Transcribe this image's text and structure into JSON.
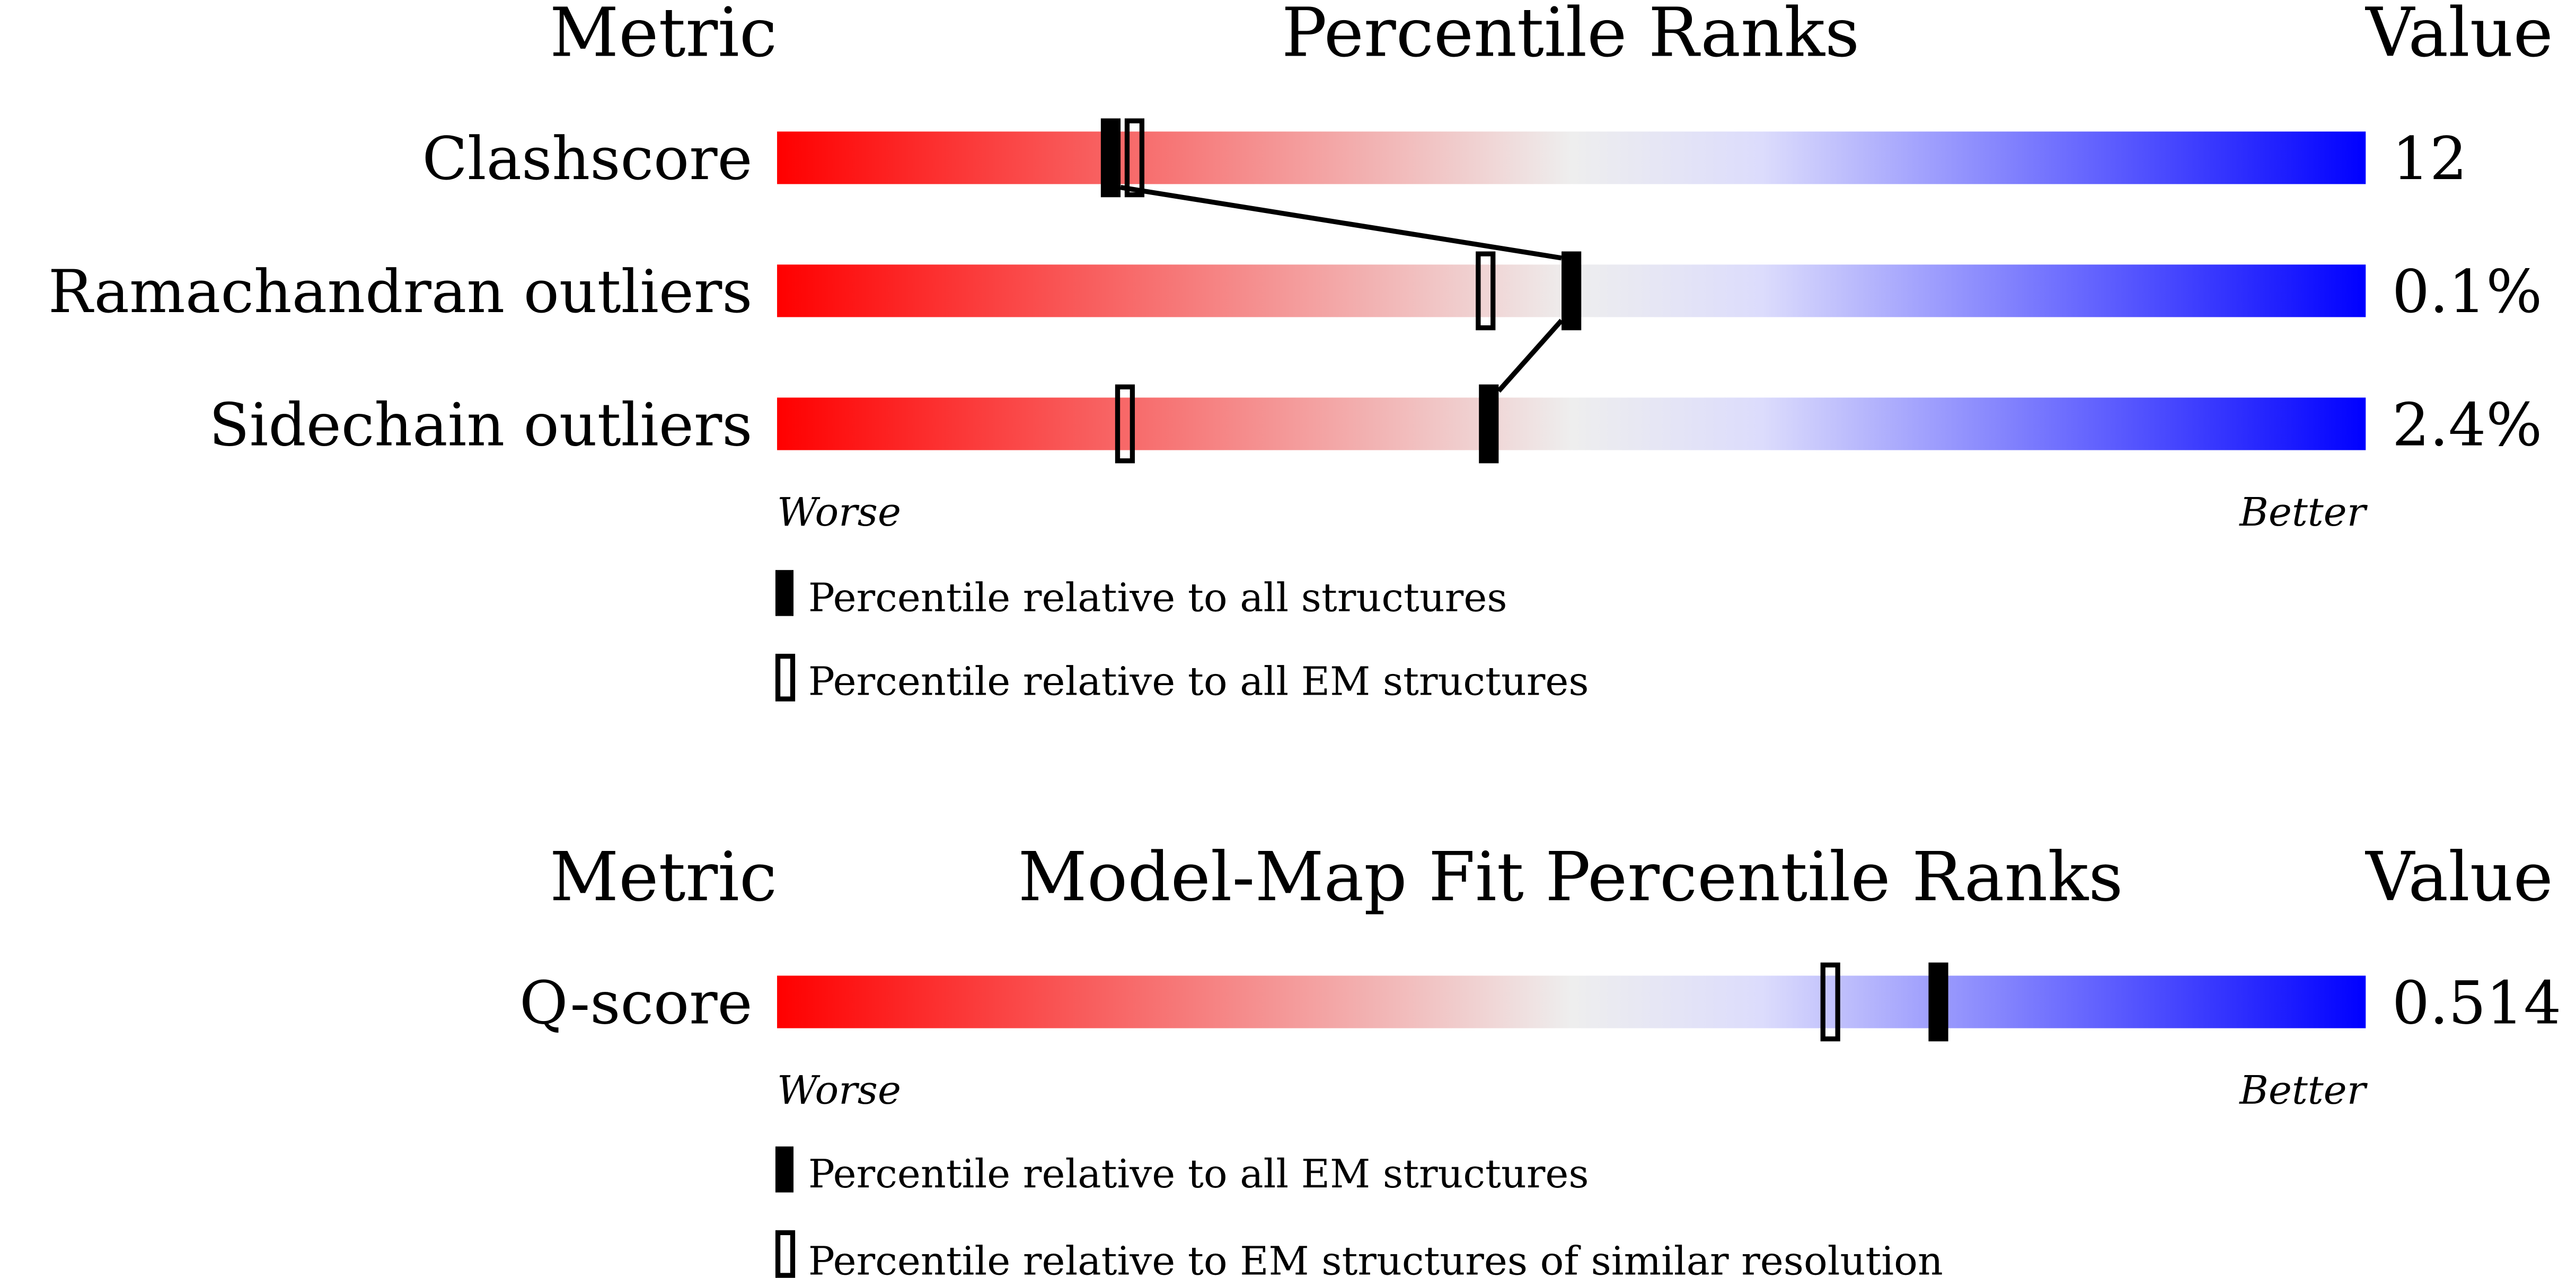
{
  "chart_data": [
    {
      "type": "bar",
      "title": "Percentile Ranks",
      "header_metric": "Metric",
      "header_value": "Value",
      "xlim": [
        0,
        100
      ],
      "low_label": "Worse",
      "high_label": "Better",
      "colors": {
        "worse": "#ff0000",
        "middle": "#eeeeee",
        "better": "#0000ff"
      },
      "rows": [
        {
          "metric": "Clashscore",
          "value": "12",
          "percentile_all": 21,
          "percentile_em": 22.5
        },
        {
          "metric": "Ramachandran outliers",
          "value": "0.1%",
          "percentile_all": 50,
          "percentile_em": 44.6
        },
        {
          "metric": "Sidechain outliers",
          "value": "2.4%",
          "percentile_all": 44.8,
          "percentile_em": 21.9
        }
      ],
      "legend": {
        "filled": "Percentile relative to all structures",
        "hollow": "Percentile relative to all EM structures"
      }
    },
    {
      "type": "bar",
      "title": "Model-Map Fit Percentile Ranks",
      "header_metric": "Metric",
      "header_value": "Value",
      "xlim": [
        0,
        100
      ],
      "low_label": "Worse",
      "high_label": "Better",
      "rows": [
        {
          "metric": "Q-score",
          "value": "0.514",
          "percentile_all": 73.1,
          "percentile_em": 66.3
        }
      ],
      "legend": {
        "filled": "Percentile relative to all EM structures",
        "hollow": "Percentile relative to EM structures of similar resolution"
      }
    }
  ]
}
